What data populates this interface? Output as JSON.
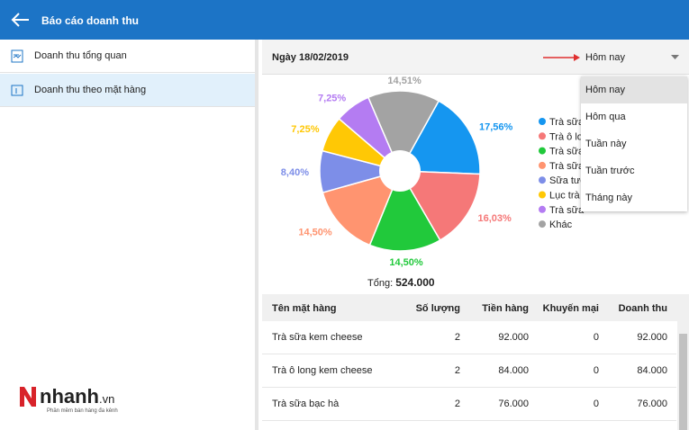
{
  "header": {
    "title": "Báo cáo doanh thu"
  },
  "sidebar": {
    "items": [
      "Doanh thu tổng quan",
      "Doanh thu theo mặt hàng"
    ]
  },
  "date_label": "Ngày 18/02/2019",
  "period": {
    "selected": "Hôm nay",
    "options": [
      "Hôm nay",
      "Hôm qua",
      "Tuần này",
      "Tuần trước",
      "Tháng này"
    ]
  },
  "chart_data": {
    "type": "pie",
    "categories": [
      "Trà sữa",
      "Trà ô long",
      "Trà sữa",
      "Trà sữa",
      "Sữa tươ",
      "Lục trà",
      "Trà sữa",
      "Khác"
    ],
    "values": [
      17.56,
      16.03,
      14.5,
      14.5,
      8.4,
      7.25,
      7.25,
      14.51
    ],
    "value_labels": [
      "17,56%",
      "16,03%",
      "14,50%",
      "14,50%",
      "8,40%",
      "7,25%",
      "7,25%",
      "14,51%"
    ],
    "colors": [
      "#1596f0",
      "#f57878",
      "#21c93b",
      "#ff9470",
      "#7d8ee8",
      "#ffc805",
      "#b47cf2",
      "#a3a3a3"
    ]
  },
  "total": {
    "label": "Tổng:",
    "value": "524.000"
  },
  "table": {
    "columns": [
      "Tên mặt hàng",
      "Số lượng",
      "Tiền hàng",
      "Khuyến mại",
      "Doanh thu"
    ],
    "rows": [
      [
        "Trà sữa kem cheese",
        2,
        "92.000",
        0,
        "92.000"
      ],
      [
        "Trà ô long kem cheese",
        2,
        "84.000",
        0,
        "84.000"
      ],
      [
        "Trà sữa bạc hà",
        2,
        "76.000",
        0,
        "76.000"
      ]
    ]
  },
  "logo": {
    "brand": "nhanh",
    "tld": ".vn",
    "tagline": "Phần mềm bán hàng đa kênh"
  }
}
